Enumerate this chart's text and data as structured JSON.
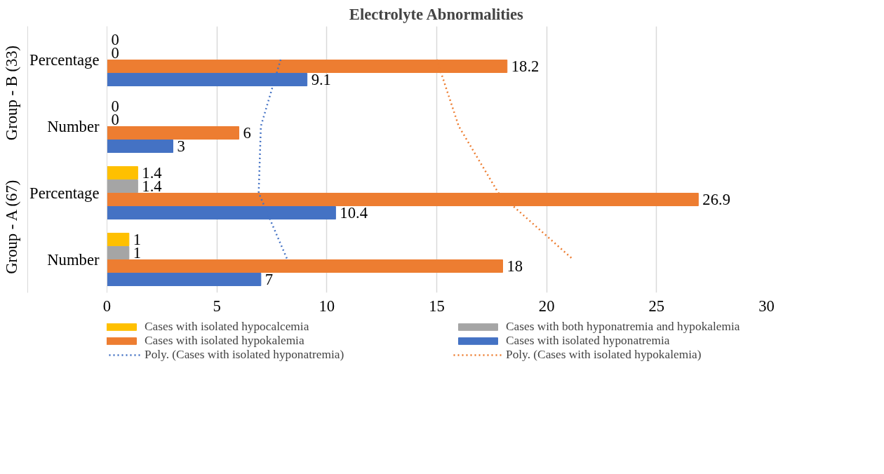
{
  "chart_data": {
    "type": "bar",
    "orientation": "horizontal",
    "title": "Electrolyte Abnormalities",
    "categories": [
      "Percentage",
      "Number",
      "Percentage",
      "Number"
    ],
    "annotations": [
      "Group - B (33)",
      "Group - A (67)"
    ],
    "series": [
      {
        "name": "Cases with isolated hypocalcemia",
        "color": "#ffc000",
        "values": [
          0,
          0,
          1.4,
          1
        ],
        "value_labels": [
          "0",
          "0",
          "1.4",
          "1"
        ]
      },
      {
        "name": "Cases with both hyponatremia and hypokalemia",
        "color": "#a5a5a5",
        "values": [
          0,
          0,
          1.4,
          1
        ],
        "value_labels": [
          "0",
          "0",
          "1.4",
          "1"
        ]
      },
      {
        "name": "Cases with isolated hypokalemia",
        "color": "#ed7d31",
        "values": [
          18.2,
          6,
          26.9,
          18
        ],
        "value_labels": [
          "18.2",
          "6",
          "26.9",
          "18"
        ]
      },
      {
        "name": "Cases with isolated hyponatremia",
        "color": "#4472c4",
        "values": [
          9.1,
          3,
          10.4,
          7
        ],
        "value_labels": [
          "9.1",
          "3",
          "10.4",
          "7"
        ]
      },
      {
        "name": "Poly. (Cases with isolated hyponatremia)",
        "type": "line",
        "line_style": "dotted",
        "color": "#4472c4",
        "values": [
          7.9,
          7.0,
          6.9,
          8.2
        ]
      },
      {
        "name": "Poly. (Cases with isolated hypokalemia)",
        "type": "line",
        "line_style": "dotted",
        "color": "#ed7d31",
        "values": [
          15.0,
          16.0,
          17.8,
          21.2
        ]
      }
    ],
    "xlim": [
      0,
      30
    ],
    "xticks": [
      0,
      5,
      10,
      15,
      20,
      25,
      30
    ],
    "grid": "x",
    "legend": "bottom"
  }
}
